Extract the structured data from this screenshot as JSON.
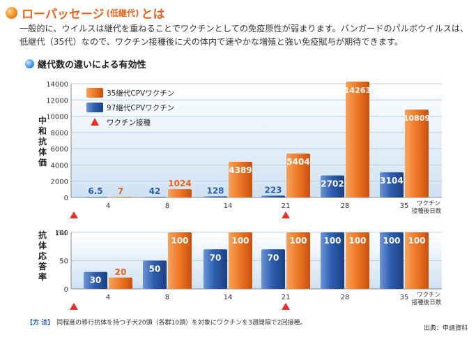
{
  "header": {
    "title_main": "ローパッセージ",
    "title_paren": "(低継代)",
    "title_tail": "とは",
    "intro": "一般的に、ウイルスは継代を重ねることでワクチンとしての免疫原性が弱まります。バンガードのパルボウイルスは、低継代（35代）なので、ワクチン接種後に犬の体内で速やかな増殖と強い免疫賦与が期待できます。",
    "subheading": "継代数の違いによる有効性"
  },
  "colors": {
    "orange": "#e8641b",
    "blue": "#2b5cae",
    "triangle": "#e8302a",
    "gridband": "#dbeaf7"
  },
  "chart_data": [
    {
      "type": "bar",
      "ylabel": "中和抗体価",
      "xlabel": "ワクチン接種後日数",
      "categories": [
        "4",
        "8",
        "14",
        "21",
        "28",
        "35"
      ],
      "ylim": [
        0,
        14000
      ],
      "yticks": [
        "0",
        "2000",
        "4000",
        "6000",
        "8000",
        "10000",
        "12000",
        "14000"
      ],
      "series": [
        {
          "name": "97継代CPVワクチン",
          "color": "#2b5cae",
          "values": [
            6.5,
            42,
            128,
            223,
            2702,
            3104
          ],
          "labels": [
            "6.5",
            "42",
            "128",
            "223",
            "2702",
            "3104"
          ]
        },
        {
          "name": "35継代CPVワクチン",
          "color": "#e8641b",
          "values": [
            7,
            1024,
            4389,
            5404,
            14263,
            10809
          ],
          "labels": [
            "7",
            "1024",
            "4389",
            "5404",
            "14263",
            "10809"
          ]
        }
      ],
      "legend": {
        "items": [
          "35継代CPVワクチン",
          "97継代CPVワクチン",
          "ワクチン接種"
        ],
        "placement": "top-left"
      },
      "vaccination_days": [
        "4",
        "21"
      ]
    },
    {
      "type": "bar",
      "ylabel": "抗体応答率",
      "yunit": "(%)",
      "xlabel": "ワクチン接種後日数",
      "categories": [
        "4",
        "8",
        "14",
        "21",
        "28",
        "35"
      ],
      "ylim": [
        0,
        100
      ],
      "yticks": [
        "0",
        "50",
        "100"
      ],
      "series": [
        {
          "name": "97継代CPVワクチン",
          "color": "#2b5cae",
          "values": [
            30,
            50,
            70,
            70,
            100,
            100
          ],
          "labels": [
            "30",
            "50",
            "70",
            "70",
            "100",
            "100"
          ]
        },
        {
          "name": "35継代CPVワクチン",
          "color": "#e8641b",
          "values": [
            20,
            100,
            100,
            100,
            100,
            100
          ],
          "labels": [
            "20",
            "100",
            "100",
            "100",
            "100",
            "100"
          ]
        }
      ],
      "vaccination_days": [
        "4",
        "21"
      ]
    }
  ],
  "footer": {
    "method_tag": "【方 法】",
    "method_text": "同程度の移行抗体を持つ子犬20頭（各群10頭）を対象にワクチンを3週間隔で2回接種。",
    "source": "出典：申請資料",
    "xlabel_line1": "ワクチン",
    "xlabel_line2": "接種後日数"
  }
}
